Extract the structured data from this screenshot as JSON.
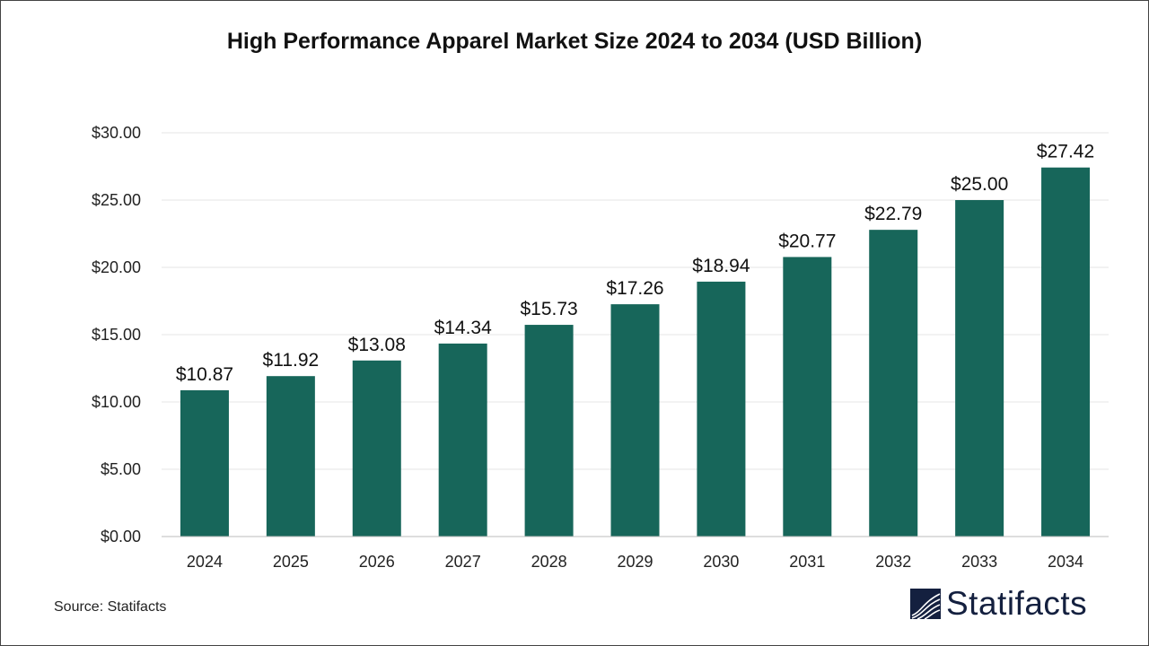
{
  "chart_data": {
    "type": "bar",
    "title": "High Performance Apparel Market Size 2024 to 2034 (USD Billion)",
    "categories": [
      "2024",
      "2025",
      "2026",
      "2027",
      "2028",
      "2029",
      "2030",
      "2031",
      "2032",
      "2033",
      "2034"
    ],
    "values": [
      10.87,
      11.92,
      13.08,
      14.34,
      15.73,
      17.26,
      18.94,
      20.77,
      22.79,
      25.0,
      27.42
    ],
    "data_labels": [
      "$10.87",
      "$11.92",
      "$13.08",
      "$14.34",
      "$15.73",
      "$17.26",
      "$18.94",
      "$20.77",
      "$22.79",
      "$25.00",
      "$27.42"
    ],
    "yticks": [
      0,
      5,
      10,
      15,
      20,
      25,
      30
    ],
    "ytick_labels": [
      "$0.00",
      "$5.00",
      "$10.00",
      "$15.00",
      "$20.00",
      "$25.00",
      "$30.00"
    ],
    "ylim": [
      0,
      30
    ],
    "xlabel": "",
    "ylabel": "",
    "grid": true,
    "bar_color": "#17665a"
  },
  "source": "Source: Statifacts",
  "logo": {
    "text": "Statifacts",
    "color": "#14203f"
  }
}
